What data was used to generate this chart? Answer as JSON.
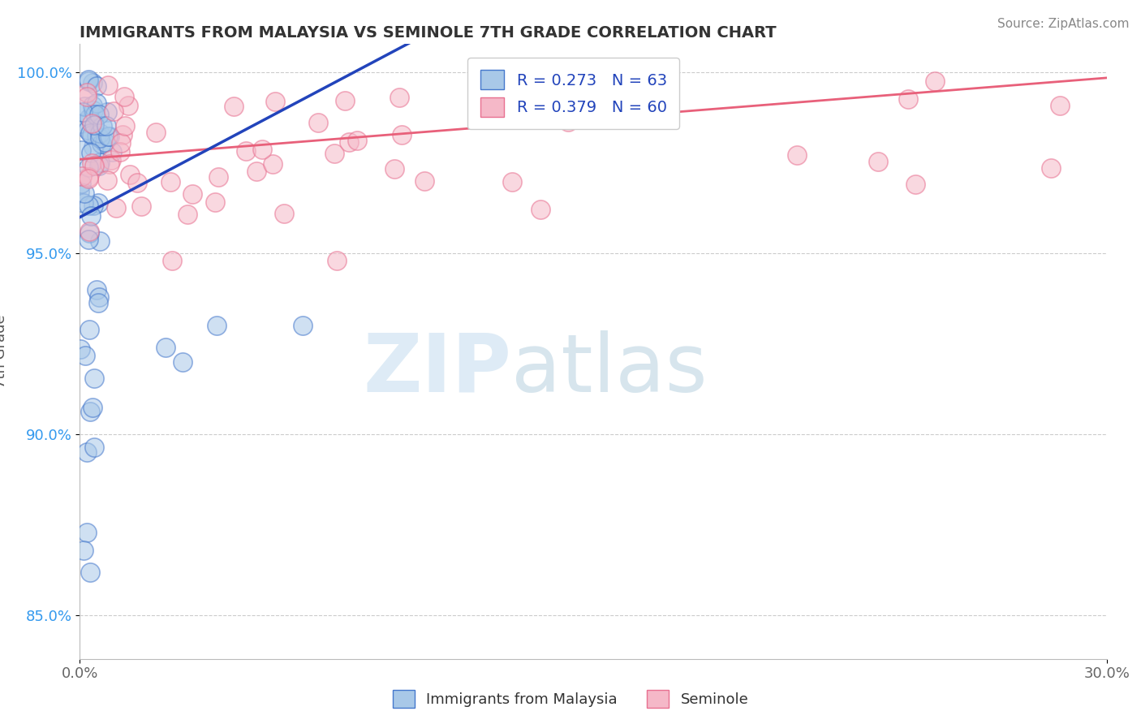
{
  "title": "IMMIGRANTS FROM MALAYSIA VS SEMINOLE 7TH GRADE CORRELATION CHART",
  "source": "Source: ZipAtlas.com",
  "ylabel": "7th Grade",
  "xlim": [
    0.0,
    0.3
  ],
  "ylim": [
    0.838,
    1.008
  ],
  "yticks": [
    0.85,
    0.9,
    0.95,
    1.0
  ],
  "yticklabels": [
    "85.0%",
    "90.0%",
    "95.0%",
    "100.0%"
  ],
  "legend_r1": "R = 0.273",
  "legend_n1": "N = 63",
  "legend_r2": "R = 0.379",
  "legend_n2": "N = 60",
  "blue_face": "#A8C8E8",
  "blue_edge": "#4477CC",
  "pink_face": "#F5B8C8",
  "pink_edge": "#E87090",
  "blue_line": "#2244BB",
  "pink_line": "#E8607A",
  "legend_text_color": "#2244BB"
}
